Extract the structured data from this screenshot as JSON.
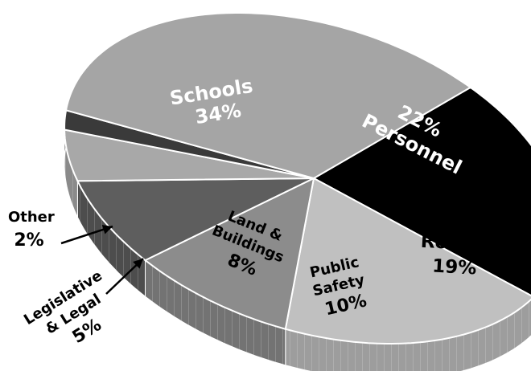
{
  "chart_data": {
    "type": "pie",
    "title": "",
    "slices": [
      {
        "label": "Personnel",
        "value": 22,
        "value_label": "22%",
        "color": "#000000",
        "text_color": "#ffffff"
      },
      {
        "label": "Roads",
        "value": 19,
        "value_label": "19%",
        "color": "#c0c0c0",
        "text_color": "#000000"
      },
      {
        "label": "Public Safety",
        "value": 10,
        "value_label": "10%",
        "color": "#8c8c8c",
        "text_color": "#000000"
      },
      {
        "label": "Land & Buildings",
        "value": 8,
        "value_label": "8%",
        "color": "#5e5e5e",
        "text_color": "#000000"
      },
      {
        "label": "Legislative & Legal",
        "value": 5,
        "value_label": "5%",
        "color": "#a8a8a8",
        "text_color": "#000000"
      },
      {
        "label": "Other",
        "value": 2,
        "value_label": "2%",
        "color": "#3a3a3a",
        "text_color": "#000000"
      },
      {
        "label": "Schools",
        "value": 34,
        "value_label": "34%",
        "color": "#a5a5a5",
        "text_color": "#ffffff"
      }
    ],
    "legend": "none",
    "style": "3d-tilted"
  }
}
